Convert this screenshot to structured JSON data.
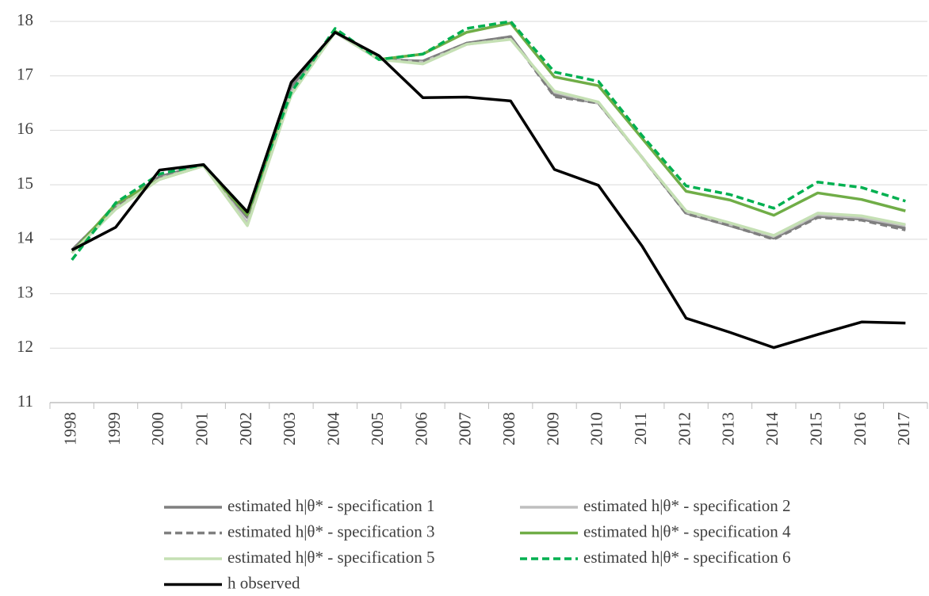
{
  "chart_data": {
    "type": "line",
    "categories": [
      "1998",
      "1999",
      "2000",
      "2001",
      "2002",
      "2003",
      "2004",
      "2005",
      "2006",
      "2007",
      "2008",
      "2009",
      "2010",
      "2011",
      "2012",
      "2013",
      "2014",
      "2015",
      "2016",
      "2017"
    ],
    "ylim": [
      11,
      18
    ],
    "yticks": [
      11,
      12,
      13,
      14,
      15,
      16,
      17,
      18
    ],
    "grid": true,
    "series": [
      {
        "name": "estimated h|θ* - specification 1",
        "color": "#7f7f7f",
        "dash": false,
        "values": [
          13.8,
          14.6,
          15.15,
          15.37,
          14.4,
          16.8,
          17.8,
          17.3,
          17.27,
          17.6,
          17.72,
          16.65,
          16.5,
          15.5,
          14.48,
          14.25,
          14.02,
          14.42,
          14.37,
          14.2
        ]
      },
      {
        "name": "estimated h|θ* - specification 2",
        "color": "#bfbfbf",
        "dash": false,
        "values": [
          13.75,
          14.6,
          15.12,
          15.35,
          14.3,
          16.7,
          17.8,
          17.3,
          17.25,
          17.58,
          17.68,
          16.7,
          16.5,
          15.5,
          14.5,
          14.27,
          14.05,
          14.45,
          14.4,
          14.25
        ]
      },
      {
        "name": "estimated h|θ* - specification 3",
        "color": "#7f7f7f",
        "dash": true,
        "values": [
          13.8,
          14.6,
          15.15,
          15.37,
          14.4,
          16.8,
          17.8,
          17.3,
          17.27,
          17.6,
          17.72,
          16.62,
          16.5,
          15.5,
          14.47,
          14.25,
          14.0,
          14.4,
          14.35,
          14.17
        ]
      },
      {
        "name": "estimated h|θ* - specification 4",
        "color": "#70ad47",
        "dash": false,
        "values": [
          13.75,
          14.65,
          15.1,
          15.35,
          14.45,
          16.65,
          17.82,
          17.3,
          17.4,
          17.8,
          17.97,
          16.98,
          16.82,
          15.85,
          14.88,
          14.72,
          14.44,
          14.85,
          14.73,
          14.52
        ]
      },
      {
        "name": "estimated h|θ* - specification 5",
        "color": "#c5e0b4",
        "dash": false,
        "values": [
          13.75,
          14.55,
          15.1,
          15.35,
          14.25,
          16.65,
          17.8,
          17.3,
          17.22,
          17.58,
          17.67,
          16.72,
          16.52,
          15.5,
          14.52,
          14.3,
          14.07,
          14.48,
          14.43,
          14.27
        ]
      },
      {
        "name": "estimated h|θ* - specification 6",
        "color": "#00b050",
        "dash": true,
        "values": [
          13.62,
          14.67,
          15.2,
          15.37,
          14.5,
          16.7,
          17.87,
          17.3,
          17.4,
          17.87,
          18.0,
          17.07,
          16.9,
          15.9,
          14.98,
          14.82,
          14.57,
          15.05,
          14.95,
          14.7
        ]
      },
      {
        "name": "h observed",
        "color": "#000000",
        "dash": false,
        "values": [
          13.8,
          14.22,
          15.27,
          15.37,
          14.5,
          16.88,
          17.8,
          17.37,
          16.6,
          16.61,
          16.54,
          15.28,
          14.99,
          13.87,
          12.55,
          12.29,
          12.01,
          12.25,
          12.48,
          12.46
        ]
      }
    ]
  }
}
